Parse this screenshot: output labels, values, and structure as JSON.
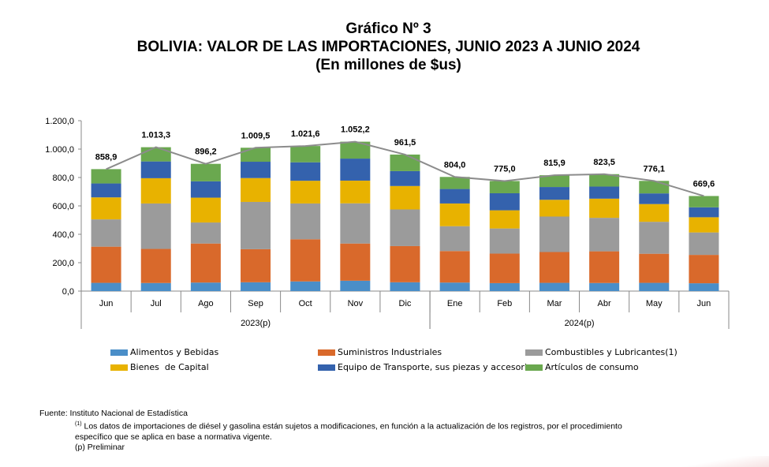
{
  "title": {
    "line1": "Gráfico Nº 3",
    "line2": "BOLIVIA: VALOR DE LAS IMPORTACIONES, JUNIO 2023 A JUNIO 2024",
    "line3": "(En millones de $us)"
  },
  "chart_data": {
    "type": "bar",
    "stacked": true,
    "categories": [
      "Jun",
      "Jul",
      "Ago",
      "Sep",
      "Oct",
      "Nov",
      "Dic",
      "Ene",
      "Feb",
      "Mar",
      "Abr",
      "May",
      "Jun"
    ],
    "year_groups": [
      {
        "label": "2023(p)",
        "start": 0,
        "end": 6
      },
      {
        "label": "2024(p)",
        "start": 7,
        "end": 12
      }
    ],
    "ylim": [
      0,
      1200
    ],
    "yticks": [
      0,
      200,
      400,
      600,
      800,
      1000,
      1200
    ],
    "ytick_labels": [
      "0,0",
      "200,0",
      "400,0",
      "600,0",
      "800,0",
      "1.000,0",
      "1.200,0"
    ],
    "series": [
      {
        "name": "Alimentos y Bebidas",
        "color": "#4a8ec8",
        "values": [
          58,
          57,
          60,
          62,
          68,
          73,
          62,
          60,
          56,
          58,
          57,
          58,
          55
        ]
      },
      {
        "name": "Suministros Industriales",
        "color": "#d9692b",
        "values": [
          255,
          240,
          275,
          233,
          297,
          262,
          255,
          222,
          208,
          217,
          223,
          205,
          200
        ]
      },
      {
        "name": "Combustibles y Lubricantes(1)",
        "color": "#9b9b9b",
        "values": [
          192,
          320,
          148,
          333,
          252,
          283,
          258,
          175,
          177,
          250,
          236,
          225,
          158
        ]
      },
      {
        "name": "Bienes  de Capital",
        "color": "#e8b200",
        "values": [
          155,
          178,
          175,
          168,
          160,
          160,
          165,
          160,
          128,
          118,
          135,
          125,
          107
        ]
      },
      {
        "name": "Equipo de Transporte, sus piezas y accesorios",
        "color": "#3462ad",
        "values": [
          98,
          118,
          115,
          115,
          130,
          155,
          105,
          102,
          120,
          90,
          85,
          75,
          70
        ]
      },
      {
        "name": "Artículos de consumo",
        "color": "#6aa84f",
        "values": [
          100.9,
          100.3,
          123.2,
          98.5,
          114.6,
          119.2,
          116.5,
          85.0,
          86.0,
          82.9,
          87.5,
          88.1,
          79.6
        ]
      }
    ],
    "totals": [
      858.9,
      1013.3,
      896.2,
      1009.5,
      1021.6,
      1052.2,
      961.5,
      804.0,
      775.0,
      815.9,
      823.5,
      776.1,
      669.6
    ],
    "total_labels": [
      "858,9",
      "1.013,3",
      "896,2",
      "1.009,5",
      "1.021,6",
      "1.052,2",
      "961,5",
      "804,0",
      "775,0",
      "815,9",
      "823,5",
      "776,1",
      "669,6"
    ],
    "total_line_color": "#8c8c8c"
  },
  "footer": {
    "source": "Fuente: Instituto Nacional de Estadística",
    "note_marker": "(1)",
    "note_text": " Los datos de importaciones de diésel y gasolina están sujetos a modificaciones, en función a la actualización de los registros, por el procedimiento",
    "note_text2": "específico que se aplica en base a normativa vigente.",
    "preliminary": "(p) Preliminar"
  }
}
